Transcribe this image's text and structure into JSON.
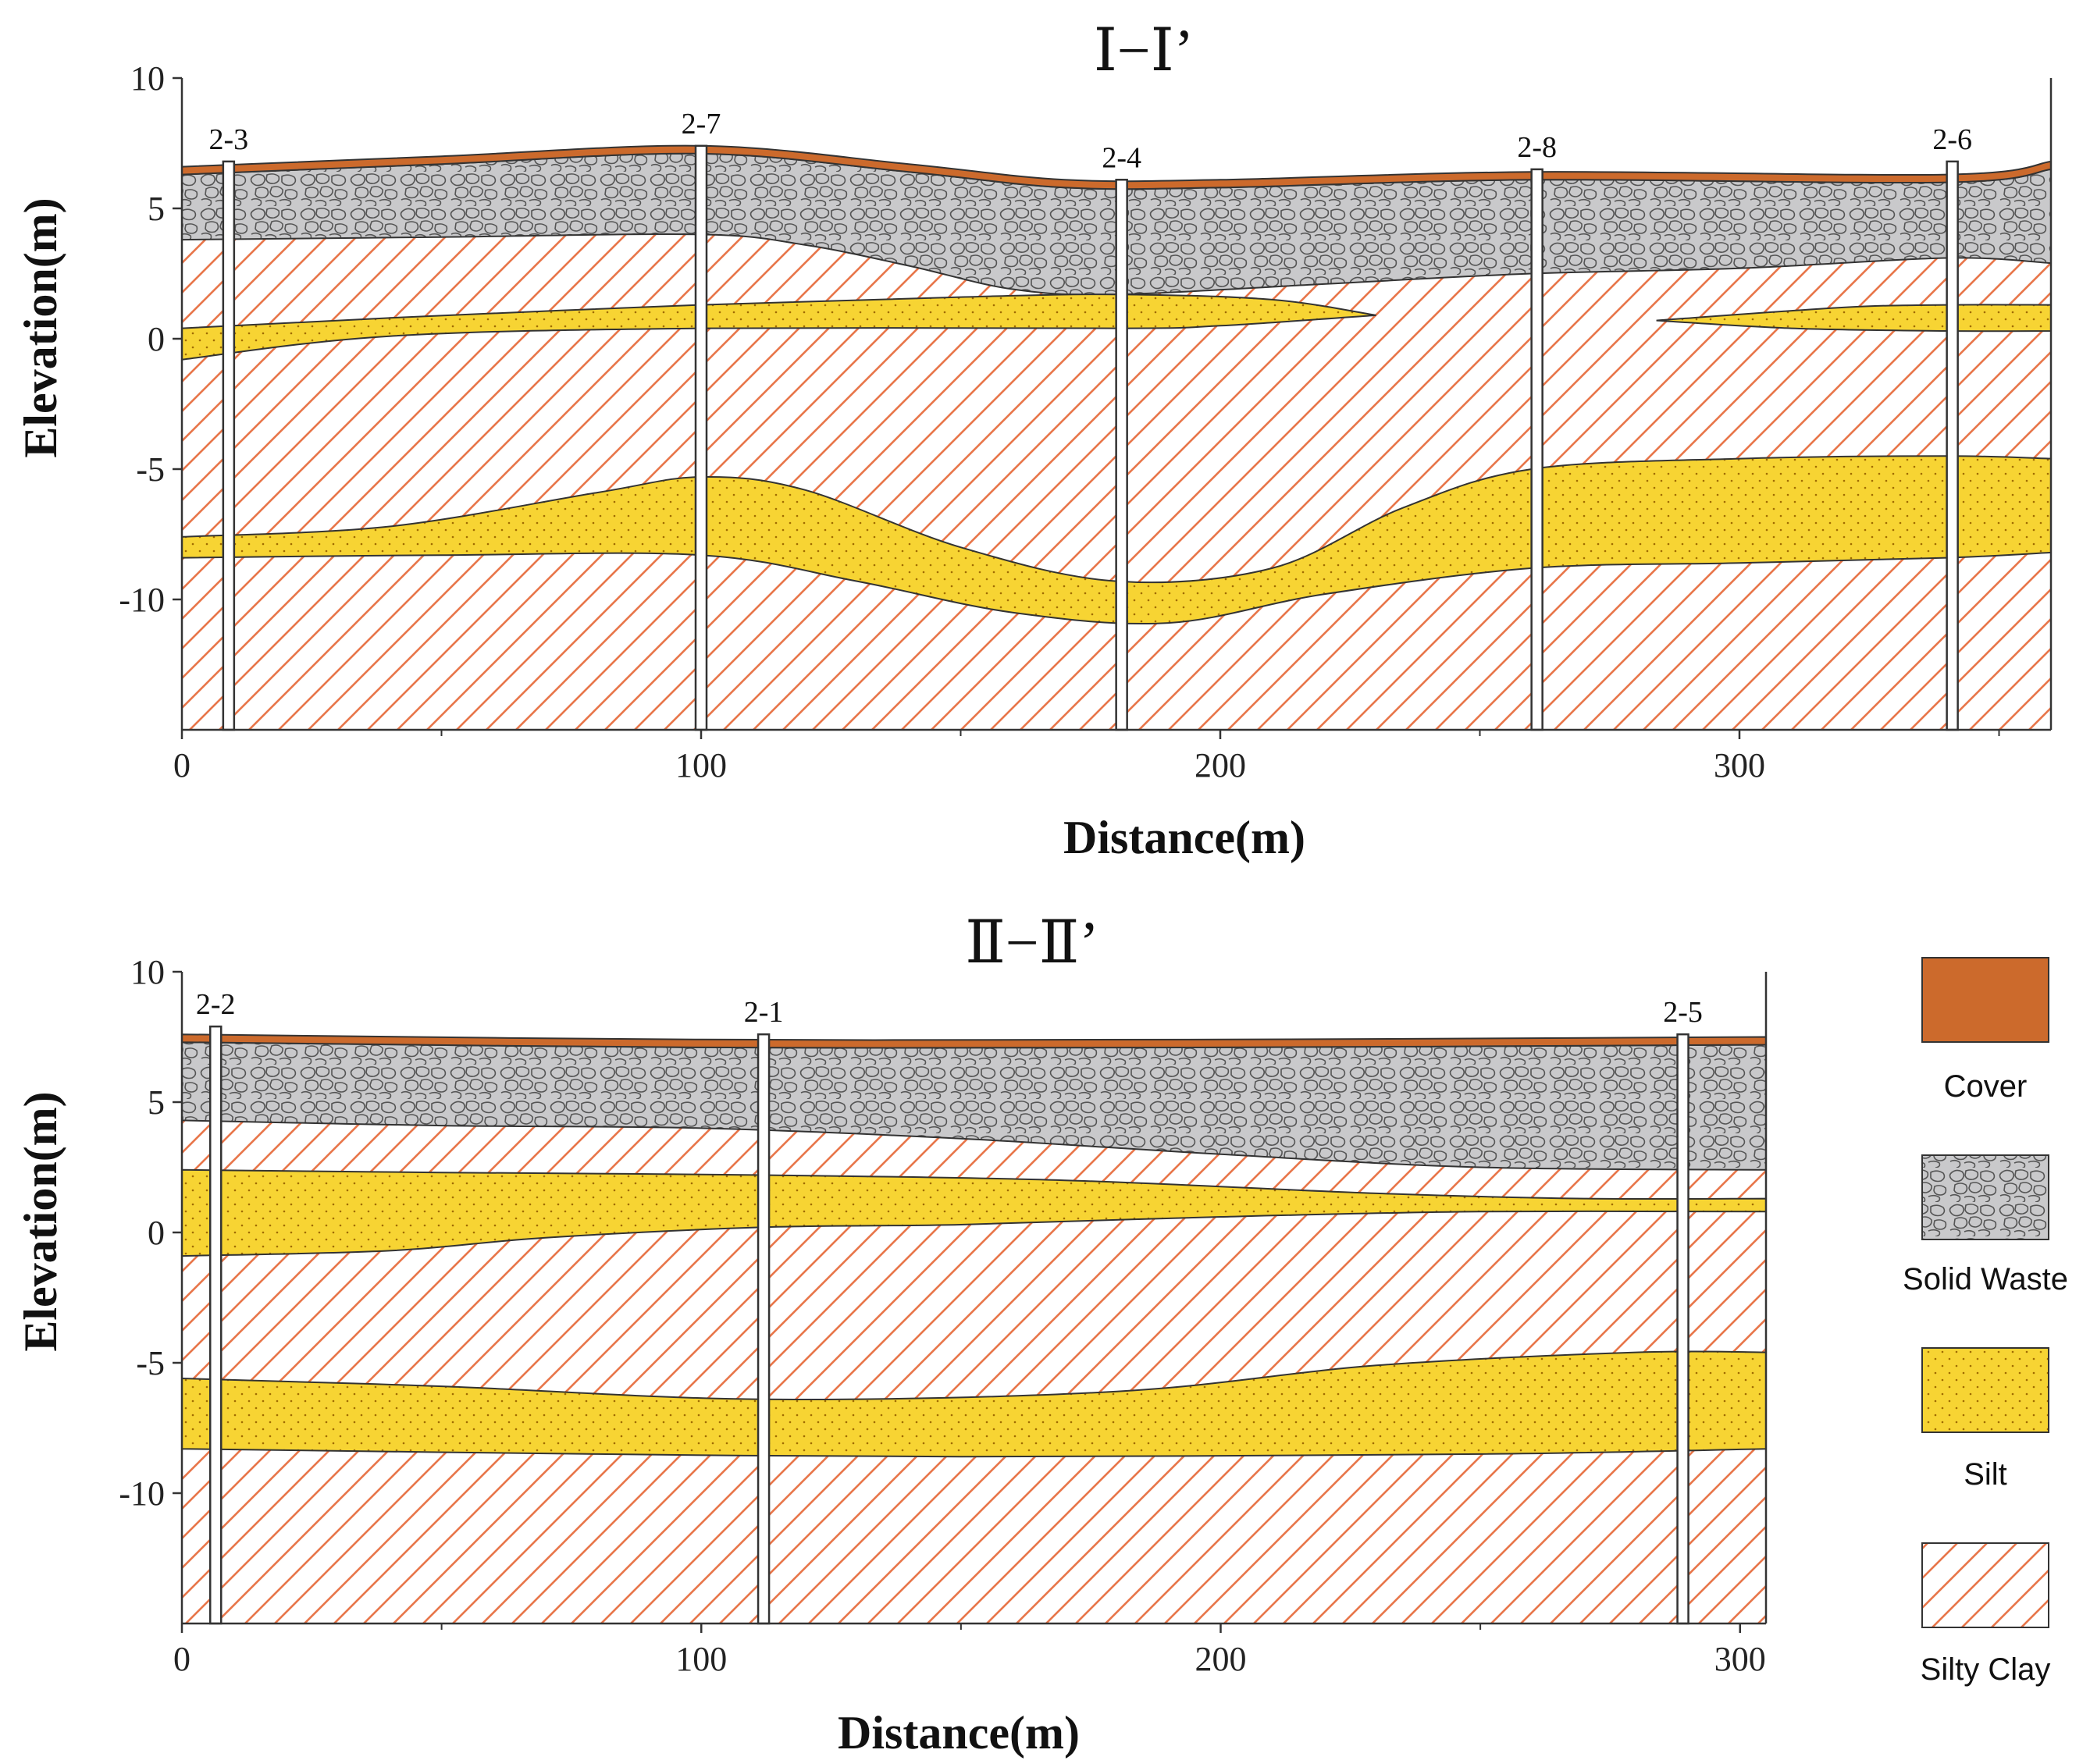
{
  "chart_data": [
    {
      "type": "geologic-cross-section",
      "title": "Ⅰ−Ⅰ’",
      "xlabel": "Distance(m)",
      "ylabel": "Elevation(m)",
      "xlim": [
        0,
        360
      ],
      "ylim": [
        -15,
        10
      ],
      "xticks": [
        0,
        100,
        200,
        300
      ],
      "yticks": [
        10,
        5,
        0,
        -5,
        -10
      ],
      "boreholes": [
        {
          "name": "2-3",
          "x": 9,
          "top": 6.8
        },
        {
          "name": "2-7",
          "x": 100,
          "top": 7.4
        },
        {
          "name": "2-4",
          "x": 181,
          "top": 6.1
        },
        {
          "name": "2-8",
          "x": 261,
          "top": 6.5
        },
        {
          "name": "2-6",
          "x": 341,
          "top": 6.8
        }
      ],
      "layers": {
        "cover_top": [
          [
            0,
            6.6
          ],
          [
            50,
            7.0
          ],
          [
            100,
            7.4
          ],
          [
            140,
            6.7
          ],
          [
            170,
            6.1
          ],
          [
            200,
            6.1
          ],
          [
            260,
            6.4
          ],
          [
            340,
            6.3
          ],
          [
            360,
            6.8
          ]
        ],
        "cover_bottom": [
          [
            0,
            6.3
          ],
          [
            50,
            6.7
          ],
          [
            100,
            7.1
          ],
          [
            140,
            6.4
          ],
          [
            170,
            5.8
          ],
          [
            200,
            5.8
          ],
          [
            260,
            6.1
          ],
          [
            340,
            6.0
          ],
          [
            360,
            6.5
          ]
        ],
        "waste_bottom": [
          [
            0,
            3.8
          ],
          [
            50,
            3.9
          ],
          [
            100,
            4.0
          ],
          [
            120,
            3.6
          ],
          [
            140,
            2.8
          ],
          [
            160,
            1.9
          ],
          [
            180,
            1.7
          ],
          [
            220,
            2.1
          ],
          [
            260,
            2.5
          ],
          [
            300,
            2.7
          ],
          [
            340,
            3.1
          ],
          [
            360,
            2.9
          ]
        ],
        "silt_upper_a": {
          "top": [
            [
              0,
              0.4
            ],
            [
              40,
              0.8
            ],
            [
              100,
              1.3
            ],
            [
              150,
              1.6
            ],
            [
              180,
              1.7
            ],
            [
              210,
              1.5
            ],
            [
              230,
              0.9
            ]
          ],
          "bottom": [
            [
              230,
              0.9
            ],
            [
              200,
              0.5
            ],
            [
              180,
              0.4
            ],
            [
              100,
              0.4
            ],
            [
              40,
              0.1
            ],
            [
              0,
              -0.8
            ]
          ]
        },
        "silt_upper_b": {
          "top": [
            [
              284,
              0.7
            ],
            [
              320,
              1.2
            ],
            [
              340,
              1.3
            ],
            [
              360,
              1.3
            ]
          ],
          "bottom": [
            [
              360,
              0.3
            ],
            [
              340,
              0.3
            ],
            [
              310,
              0.4
            ],
            [
              284,
              0.7
            ]
          ]
        },
        "silt_lower": {
          "top": [
            [
              0,
              -7.6
            ],
            [
              40,
              -7.2
            ],
            [
              80,
              -5.9
            ],
            [
              100,
              -5.3
            ],
            [
              120,
              -5.8
            ],
            [
              150,
              -8.0
            ],
            [
              180,
              -9.3
            ],
            [
              210,
              -8.8
            ],
            [
              235,
              -6.5
            ],
            [
              260,
              -5.0
            ],
            [
              300,
              -4.6
            ],
            [
              340,
              -4.5
            ],
            [
              360,
              -4.6
            ]
          ],
          "bottom": [
            [
              360,
              -8.2
            ],
            [
              340,
              -8.4
            ],
            [
              300,
              -8.6
            ],
            [
              260,
              -8.8
            ],
            [
              220,
              -9.8
            ],
            [
              190,
              -10.9
            ],
            [
              160,
              -10.5
            ],
            [
              130,
              -9.3
            ],
            [
              100,
              -8.3
            ],
            [
              50,
              -8.3
            ],
            [
              0,
              -8.4
            ]
          ]
        }
      }
    },
    {
      "type": "geologic-cross-section",
      "title": "Ⅱ−Ⅱ’",
      "xlabel": "Distance(m)",
      "ylabel": "Elevation(m)",
      "xlim": [
        0,
        305
      ],
      "ylim": [
        -15,
        10
      ],
      "xticks": [
        0,
        100,
        200,
        300
      ],
      "yticks": [
        10,
        5,
        0,
        -5,
        -10
      ],
      "boreholes": [
        {
          "name": "2-2",
          "x": 6.5,
          "top": 7.9
        },
        {
          "name": "2-1",
          "x": 112,
          "top": 7.6
        },
        {
          "name": "2-5",
          "x": 289,
          "top": 7.6
        }
      ],
      "layers": {
        "cover_top": [
          [
            0,
            7.6
          ],
          [
            100,
            7.4
          ],
          [
            200,
            7.4
          ],
          [
            305,
            7.5
          ]
        ],
        "cover_bottom": [
          [
            0,
            7.3
          ],
          [
            100,
            7.1
          ],
          [
            200,
            7.1
          ],
          [
            305,
            7.2
          ]
        ],
        "waste_bottom": [
          [
            0,
            4.3
          ],
          [
            50,
            4.1
          ],
          [
            100,
            4.0
          ],
          [
            150,
            3.6
          ],
          [
            200,
            3.0
          ],
          [
            250,
            2.5
          ],
          [
            305,
            2.4
          ]
        ],
        "silt_upper": {
          "top": [
            [
              0,
              2.4
            ],
            [
              50,
              2.3
            ],
            [
              112,
              2.2
            ],
            [
              170,
              2.0
            ],
            [
              230,
              1.5
            ],
            [
              270,
              1.3
            ],
            [
              305,
              1.3
            ]
          ],
          "bottom": [
            [
              305,
              0.8
            ],
            [
              250,
              0.8
            ],
            [
              200,
              0.6
            ],
            [
              150,
              0.3
            ],
            [
              112,
              0.2
            ],
            [
              70,
              -0.2
            ],
            [
              40,
              -0.7
            ],
            [
              0,
              -0.9
            ]
          ]
        },
        "silt_lower": {
          "top": [
            [
              0,
              -5.6
            ],
            [
              50,
              -5.9
            ],
            [
              112,
              -6.4
            ],
            [
              180,
              -6.1
            ],
            [
              230,
              -5.1
            ],
            [
              280,
              -4.6
            ],
            [
              305,
              -4.6
            ]
          ],
          "bottom": [
            [
              305,
              -8.3
            ],
            [
              250,
              -8.5
            ],
            [
              150,
              -8.6
            ],
            [
              80,
              -8.5
            ],
            [
              0,
              -8.3
            ]
          ]
        }
      }
    }
  ],
  "legend": {
    "items": [
      {
        "label": "Cover",
        "pattern": "cover"
      },
      {
        "label": "Solid Waste",
        "pattern": "waste"
      },
      {
        "label": "Silt",
        "pattern": "silt"
      },
      {
        "label": "Silty Clay",
        "pattern": "clay"
      }
    ]
  },
  "colors": {
    "cover": "#cc6a2c",
    "waste": "#c9c9cb",
    "silt": "#f7d433",
    "clay_hatch": "#e8764a",
    "outline": "#333333"
  }
}
